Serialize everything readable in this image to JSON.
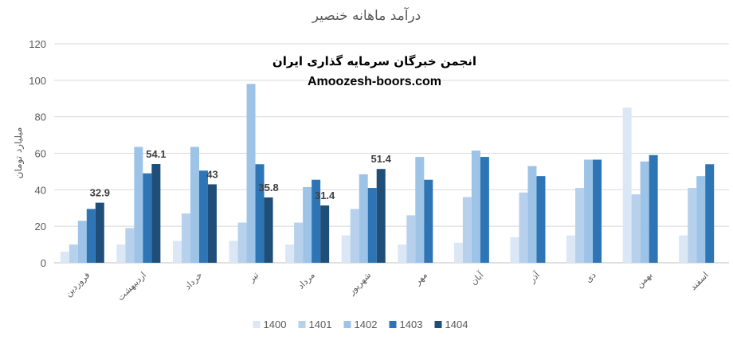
{
  "chart_data": {
    "type": "bar",
    "title": "درآمد ماهانه خنصیر",
    "ylabel": "میلیارد تومان",
    "xlabel": "",
    "ylim": [
      0,
      120
    ],
    "yticks": [
      0,
      20,
      40,
      60,
      80,
      100,
      120
    ],
    "grid": true,
    "legend_position": "bottom",
    "categories": [
      "فروردین",
      "اردیبهشت",
      "خرداد",
      "تیر",
      "مرداد",
      "شهریور",
      "مهر",
      "آبان",
      "آذر",
      "دی",
      "بهمن",
      "اسفند"
    ],
    "series": [
      {
        "name": "1400",
        "color": "#dbe7f5",
        "values": [
          6,
          10,
          12,
          12,
          10,
          15,
          10,
          11,
          14,
          15,
          85,
          15
        ]
      },
      {
        "name": "1401",
        "color": "#b7d1ec",
        "values": [
          10,
          19,
          27,
          22,
          22,
          29.5,
          26,
          36,
          38.5,
          41,
          37.5,
          41
        ]
      },
      {
        "name": "1402",
        "color": "#9dc3e6",
        "values": [
          23,
          63.5,
          63.5,
          98,
          41.5,
          48.5,
          58,
          61.5,
          53,
          56.5,
          55.5,
          47.5
        ]
      },
      {
        "name": "1403",
        "color": "#2e75b6",
        "values": [
          29.5,
          49,
          50.5,
          54,
          45.5,
          41,
          45.5,
          58,
          47.5,
          56.5,
          59,
          54
        ]
      },
      {
        "name": "1404",
        "color": "#1f4e79",
        "values": [
          32.9,
          54.1,
          43,
          35.8,
          31.4,
          51.4,
          null,
          null,
          null,
          null,
          null,
          null
        ]
      }
    ],
    "data_labels": [
      {
        "category": "فروردین",
        "series": "1404",
        "text": "32.9"
      },
      {
        "category": "اردیبهشت",
        "series": "1404",
        "text": "54.1"
      },
      {
        "category": "خرداد",
        "series": "1404",
        "text": "43"
      },
      {
        "category": "تیر",
        "series": "1404",
        "text": "35.8"
      },
      {
        "category": "مرداد",
        "series": "1404",
        "text": "31.4"
      },
      {
        "category": "شهریور",
        "series": "1404",
        "text": "51.4"
      }
    ]
  },
  "watermark": {
    "line1": "انجمن خبرگان سرمایه گذاری ایران",
    "line2": "Amoozesh-boors.com"
  }
}
